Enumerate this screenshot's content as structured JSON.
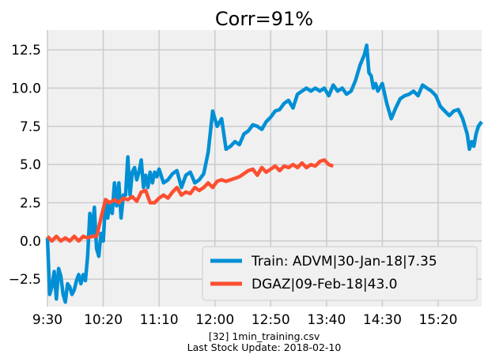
{
  "chart_data": {
    "type": "line",
    "title": "Corr=91%",
    "xlabel": "",
    "ylabel": "",
    "grid": true,
    "legend_position": "bottom-right",
    "x_tick_labels": [
      "9:30",
      "10:20",
      "11:10",
      "12:00",
      "12:50",
      "13:40",
      "14:30",
      "15:20"
    ],
    "x_tick_minutes": [
      0,
      50,
      100,
      150,
      200,
      250,
      300,
      350
    ],
    "y_ticks": [
      -2.5,
      0.0,
      2.5,
      5.0,
      7.5,
      10.0,
      12.5
    ],
    "y_tick_labels": [
      "−2.5",
      "0.0",
      "2.5",
      "5.0",
      "7.5",
      "10.0",
      "12.5"
    ],
    "xlim": [
      0,
      389
    ],
    "ylim": [
      -4.3,
      13.8
    ],
    "series": [
      {
        "name": "Train: ADVM|30-Jan-18|7.35",
        "color": "#008fd5",
        "x": [
          0,
          2,
          4,
          6,
          8,
          10,
          12,
          14,
          16,
          18,
          20,
          22,
          24,
          26,
          28,
          30,
          32,
          34,
          36,
          38,
          40,
          42,
          44,
          46,
          48,
          50,
          52,
          54,
          56,
          58,
          60,
          62,
          64,
          66,
          68,
          70,
          72,
          74,
          76,
          78,
          80,
          82,
          84,
          86,
          88,
          90,
          92,
          94,
          96,
          98,
          100,
          104,
          108,
          112,
          116,
          120,
          124,
          128,
          132,
          136,
          140,
          144,
          148,
          152,
          156,
          160,
          164,
          168,
          172,
          176,
          180,
          184,
          188,
          192,
          196,
          200,
          204,
          208,
          212,
          216,
          220,
          224,
          228,
          232,
          236,
          240,
          244,
          248,
          252,
          256,
          260,
          264,
          268,
          272,
          276,
          280,
          284,
          286,
          288,
          290,
          292,
          294,
          296,
          300,
          304,
          308,
          312,
          316,
          320,
          324,
          328,
          332,
          336,
          340,
          344,
          348,
          352,
          356,
          360,
          364,
          368,
          372,
          376,
          378,
          380,
          382,
          384,
          386,
          389
        ],
        "values": [
          0.2,
          -3.5,
          -3.0,
          -2.0,
          -3.8,
          -1.8,
          -2.3,
          -3.5,
          -4.0,
          -2.8,
          -3.0,
          -3.5,
          -3.2,
          -2.6,
          -2.2,
          -2.8,
          -2.2,
          -2.6,
          -1.0,
          1.8,
          0.5,
          2.2,
          -0.5,
          -1.0,
          0.5,
          0.0,
          2.7,
          1.5,
          2.5,
          1.8,
          3.8,
          2.3,
          3.8,
          1.5,
          3.0,
          3.0,
          5.5,
          3.0,
          4.5,
          4.8,
          4.0,
          4.5,
          5.3,
          3.5,
          4.3,
          3.5,
          4.5,
          3.8,
          4.5,
          4.2,
          4.7,
          3.8,
          4.0,
          4.4,
          4.6,
          3.5,
          4.3,
          4.5,
          3.8,
          4.0,
          4.4,
          5.8,
          8.5,
          7.5,
          8.0,
          6.0,
          6.2,
          6.5,
          6.3,
          7.0,
          7.2,
          7.6,
          7.5,
          7.3,
          7.8,
          8.1,
          8.5,
          8.6,
          9.0,
          9.2,
          8.7,
          9.6,
          9.8,
          10.0,
          9.8,
          10.0,
          9.8,
          10.0,
          9.5,
          10.2,
          9.8,
          10.0,
          9.6,
          9.8,
          10.5,
          11.5,
          12.2,
          12.8,
          11.0,
          10.8,
          10.0,
          10.3,
          9.8,
          10.3,
          9.0,
          8.0,
          8.7,
          9.3,
          9.5,
          9.6,
          9.8,
          9.5,
          10.2,
          10.0,
          9.8,
          9.5,
          8.8,
          8.5,
          8.2,
          8.5,
          8.6,
          8.0,
          7.0,
          6.0,
          6.5,
          6.2,
          7.0,
          7.5,
          7.8
        ]
      },
      {
        "name": "DGAZ|09-Feb-18|43.0",
        "color": "#fc4f30",
        "x": [
          0,
          4,
          8,
          12,
          16,
          20,
          24,
          28,
          32,
          36,
          40,
          44,
          48,
          52,
          56,
          60,
          64,
          68,
          72,
          76,
          80,
          84,
          88,
          92,
          96,
          100,
          104,
          108,
          112,
          116,
          120,
          124,
          128,
          132,
          136,
          140,
          144,
          148,
          152,
          156,
          160,
          164,
          168,
          172,
          176,
          180,
          184,
          188,
          192,
          196,
          200,
          204,
          208,
          212,
          216,
          220,
          224,
          228,
          232,
          236,
          240,
          244,
          248,
          252,
          256
        ],
        "values": [
          0.3,
          0.0,
          0.3,
          0.0,
          0.2,
          0.0,
          0.3,
          0.0,
          0.3,
          0.2,
          0.3,
          0.3,
          1.5,
          2.7,
          2.5,
          2.7,
          2.5,
          2.8,
          2.7,
          2.9,
          2.6,
          3.2,
          3.3,
          2.5,
          2.5,
          2.8,
          3.0,
          2.8,
          3.2,
          3.5,
          3.0,
          3.2,
          3.1,
          3.5,
          3.3,
          3.5,
          3.8,
          3.5,
          3.9,
          4.0,
          3.9,
          4.0,
          4.1,
          4.2,
          4.4,
          4.6,
          4.7,
          4.3,
          4.8,
          4.5,
          4.7,
          4.9,
          4.6,
          4.9,
          4.8,
          5.0,
          4.8,
          5.1,
          4.8,
          5.0,
          4.9,
          5.2,
          5.3,
          5.0,
          4.9
        ]
      }
    ]
  },
  "caption": {
    "line1": "[32] 1min_training.csv",
    "line2": "Last Stock Update: 2018-02-10"
  }
}
